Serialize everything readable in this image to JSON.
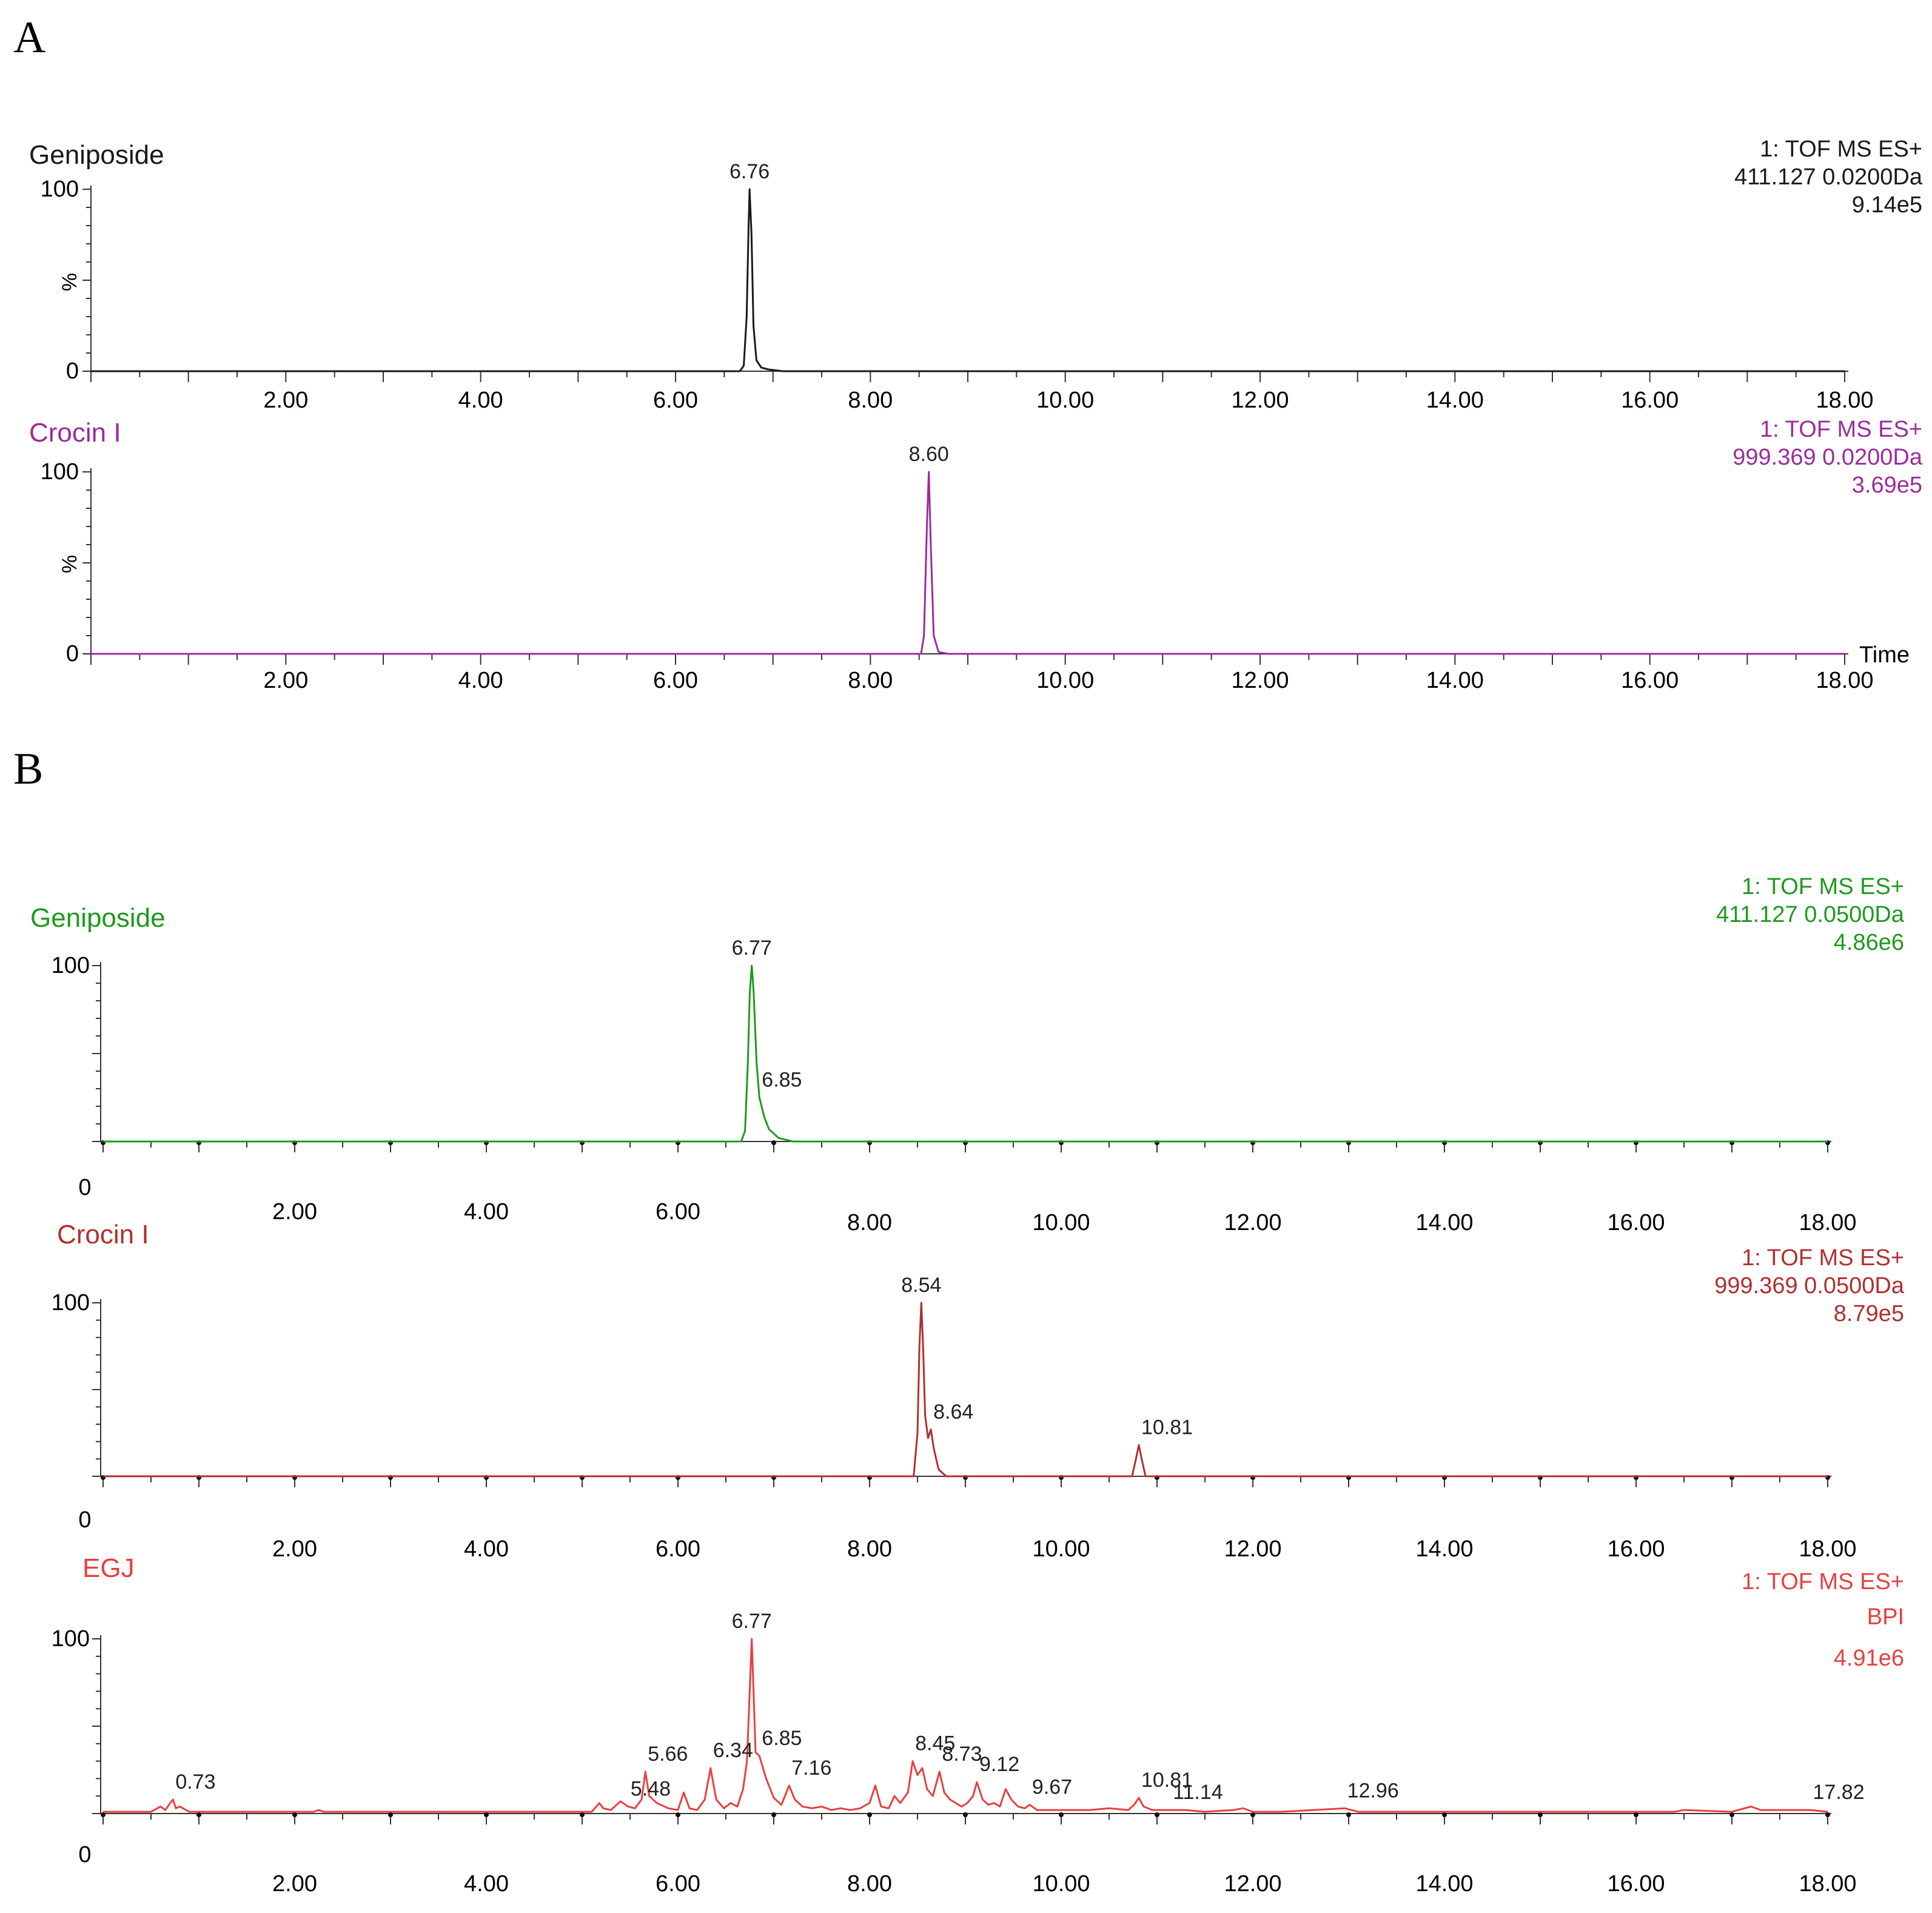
{
  "panels": [
    {
      "letter": "A"
    },
    {
      "letter": "B"
    }
  ],
  "chart_data": [
    {
      "type": "line",
      "panel": "A",
      "title": "Geniposide",
      "color": "#1a1a1a",
      "info": [
        "1: TOF MS ES+",
        "411.127 0.0200Da",
        "9.14e5"
      ],
      "xlabel": "",
      "ylabel": "%",
      "ytick_labels": [
        "100",
        "0"
      ],
      "ylim": [
        0,
        100
      ],
      "xlim": [
        0.0,
        18.0
      ],
      "xtick_labels": [
        "2.00",
        "4.00",
        "6.00",
        "8.00",
        "10.00",
        "12.00",
        "14.00",
        "16.00",
        "18.00"
      ],
      "peak_labels": [
        {
          "x": 6.76,
          "label": "6.76"
        }
      ],
      "x": [
        0.0,
        6.66,
        6.7,
        6.73,
        6.75,
        6.76,
        6.78,
        6.8,
        6.83,
        6.88,
        6.95,
        7.1,
        18.0
      ],
      "y": [
        0,
        0,
        3,
        30,
        80,
        100,
        75,
        25,
        6,
        2,
        1,
        0,
        0
      ]
    },
    {
      "type": "line",
      "panel": "A",
      "title": "Crocin I",
      "color": "#9b2d9b",
      "info": [
        "1: TOF MS ES+",
        "999.369 0.0200Da",
        "3.69e5"
      ],
      "xlabel": "Time",
      "ylabel": "%",
      "ytick_labels": [
        "100",
        "0"
      ],
      "ylim": [
        0,
        100
      ],
      "xlim": [
        0.0,
        18.0
      ],
      "xtick_labels": [
        "2.00",
        "4.00",
        "6.00",
        "8.00",
        "10.00",
        "12.00",
        "14.00",
        "16.00",
        "18.00"
      ],
      "peak_labels": [
        {
          "x": 8.6,
          "label": "8.60"
        }
      ],
      "x": [
        0.0,
        8.52,
        8.55,
        8.58,
        8.6,
        8.62,
        8.65,
        8.7,
        8.8,
        18.0
      ],
      "y": [
        0,
        0,
        10,
        70,
        100,
        60,
        10,
        1,
        0,
        0
      ]
    },
    {
      "type": "line",
      "panel": "B",
      "title": "Geniposide",
      "color": "#1e9a1e",
      "info": [
        "1: TOF MS ES+",
        "411.127 0.0500Da",
        "4.86e6"
      ],
      "xlabel": "",
      "ytick_labels": [
        "100",
        "0"
      ],
      "ylim": [
        0,
        100
      ],
      "xlim": [
        0.0,
        18.0
      ],
      "xtick_labels": [
        "2.00",
        "4.00",
        "6.00",
        "8.00",
        "10.00",
        "12.00",
        "14.00",
        "16.00",
        "18.00"
      ],
      "peak_labels": [
        {
          "x": 6.77,
          "label": "6.77"
        },
        {
          "x": 6.85,
          "label": "6.85"
        }
      ],
      "x": [
        0.0,
        6.66,
        6.7,
        6.73,
        6.75,
        6.77,
        6.79,
        6.82,
        6.85,
        6.9,
        6.95,
        7.05,
        7.2,
        18.0
      ],
      "y": [
        0,
        0,
        6,
        45,
        85,
        100,
        85,
        45,
        25,
        14,
        7,
        2,
        0,
        0
      ]
    },
    {
      "type": "line",
      "panel": "B",
      "title": "Crocin I",
      "color": "#b03030",
      "info": [
        "1: TOF MS ES+",
        "999.369 0.0500Da",
        "8.79e5"
      ],
      "xlabel": "",
      "ytick_labels": [
        "100",
        "0"
      ],
      "ylim": [
        0,
        100
      ],
      "xlim": [
        0.0,
        18.0
      ],
      "xtick_labels": [
        "2.00",
        "4.00",
        "6.00",
        "8.00",
        "10.00",
        "12.00",
        "14.00",
        "16.00",
        "18.00"
      ],
      "peak_labels": [
        {
          "x": 8.54,
          "label": "8.54"
        },
        {
          "x": 8.64,
          "label": "8.64"
        },
        {
          "x": 10.81,
          "label": "10.81"
        }
      ],
      "x": [
        0.0,
        8.46,
        8.5,
        8.52,
        8.54,
        8.56,
        8.58,
        8.61,
        8.64,
        8.67,
        8.72,
        8.8,
        10.74,
        10.78,
        10.81,
        10.84,
        10.88,
        18.0
      ],
      "y": [
        0,
        0,
        25,
        75,
        100,
        72,
        35,
        22,
        27,
        16,
        4,
        0,
        0,
        10,
        18,
        10,
        0,
        0
      ]
    },
    {
      "type": "line",
      "panel": "B",
      "title": "EGJ",
      "color": "#e84040",
      "info": [
        "1: TOF MS ES+",
        "BPI",
        "4.91e6"
      ],
      "xlabel": "",
      "ytick_labels": [
        "100",
        "0"
      ],
      "ylim": [
        0,
        100
      ],
      "xlim": [
        0.0,
        18.0
      ],
      "xtick_labels": [
        "2.00",
        "4.00",
        "6.00",
        "8.00",
        "10.00",
        "12.00",
        "14.00",
        "16.00",
        "18.00"
      ],
      "peak_labels": [
        {
          "x": 0.73,
          "label": "0.73"
        },
        {
          "x": 5.48,
          "label": "5.48"
        },
        {
          "x": 5.66,
          "label": "5.66"
        },
        {
          "x": 6.34,
          "label": "6.34"
        },
        {
          "x": 6.77,
          "label": "6.77"
        },
        {
          "x": 6.85,
          "label": "6.85"
        },
        {
          "x": 7.16,
          "label": "7.16"
        },
        {
          "x": 8.45,
          "label": "8.45"
        },
        {
          "x": 8.73,
          "label": "8.73"
        },
        {
          "x": 9.12,
          "label": "9.12"
        },
        {
          "x": 9.67,
          "label": "9.67"
        },
        {
          "x": 10.81,
          "label": "10.81"
        },
        {
          "x": 11.14,
          "label": "11.14"
        },
        {
          "x": 12.96,
          "label": "12.96"
        },
        {
          "x": 17.82,
          "label": "17.82"
        }
      ],
      "x": [
        0.0,
        0.5,
        0.6,
        0.65,
        0.7,
        0.73,
        0.76,
        0.8,
        0.9,
        1.0,
        2.2,
        2.25,
        2.3,
        5.1,
        5.18,
        5.22,
        5.3,
        5.4,
        5.48,
        5.55,
        5.62,
        5.66,
        5.7,
        5.78,
        5.9,
        6.0,
        6.06,
        6.12,
        6.2,
        6.28,
        6.34,
        6.4,
        6.48,
        6.55,
        6.62,
        6.68,
        6.72,
        6.77,
        6.81,
        6.85,
        6.92,
        7.0,
        7.08,
        7.16,
        7.22,
        7.3,
        7.4,
        7.5,
        7.6,
        7.7,
        7.8,
        7.9,
        8.0,
        8.06,
        8.12,
        8.2,
        8.26,
        8.32,
        8.4,
        8.45,
        8.5,
        8.55,
        8.6,
        8.66,
        8.73,
        8.78,
        8.84,
        8.9,
        8.96,
        9.02,
        9.08,
        9.12,
        9.18,
        9.24,
        9.3,
        9.36,
        9.42,
        9.48,
        9.55,
        9.62,
        9.67,
        9.75,
        9.9,
        10.1,
        10.3,
        10.5,
        10.7,
        10.76,
        10.81,
        10.86,
        10.95,
        11.14,
        11.3,
        11.5,
        11.8,
        11.9,
        12.0,
        12.3,
        12.96,
        13.1,
        16.4,
        16.5,
        17.0,
        17.2,
        17.3,
        17.82,
        18.0
      ],
      "y": [
        1,
        1,
        4,
        2,
        6,
        8,
        3,
        4,
        1,
        1,
        1,
        2,
        1,
        1,
        6,
        3,
        2,
        7,
        4,
        3,
        8,
        24,
        10,
        6,
        3,
        2,
        12,
        3,
        2,
        8,
        26,
        8,
        3,
        6,
        4,
        14,
        30,
        100,
        35,
        33,
        20,
        9,
        5,
        16,
        8,
        4,
        3,
        4,
        2,
        3,
        2,
        3,
        6,
        16,
        4,
        3,
        10,
        6,
        12,
        30,
        22,
        26,
        14,
        10,
        24,
        12,
        8,
        6,
        4,
        6,
        10,
        18,
        8,
        5,
        6,
        4,
        14,
        8,
        4,
        3,
        5,
        2,
        2,
        2,
        2,
        3,
        2,
        5,
        9,
        4,
        2,
        2,
        2,
        1,
        2,
        3,
        1,
        1,
        3,
        1,
        1,
        2,
        1,
        4,
        2,
        2,
        1
      ]
    }
  ]
}
